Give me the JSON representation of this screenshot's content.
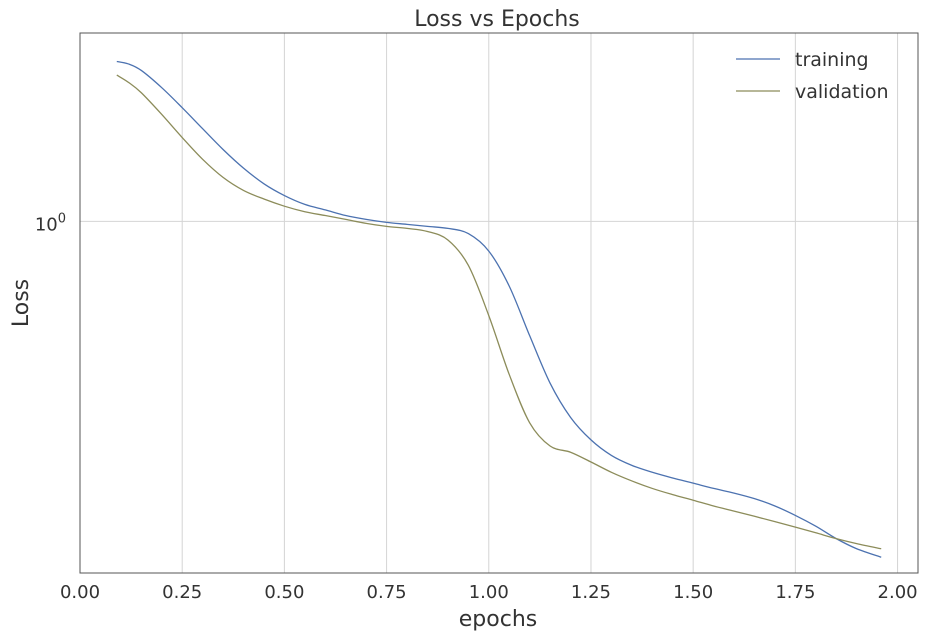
{
  "chart_data": {
    "type": "line",
    "title": "Loss vs Epochs",
    "xlabel": "epochs",
    "ylabel": "Loss",
    "xlim": [
      0.0,
      2.05
    ],
    "yscale": "log",
    "ylim": [
      0.168,
      2.6
    ],
    "grid": true,
    "legend_position": "top-right",
    "x_ticks": [
      0.0,
      0.25,
      0.5,
      0.75,
      1.0,
      1.25,
      1.5,
      1.75,
      2.0
    ],
    "x_tick_labels": [
      "0.00",
      "0.25",
      "0.50",
      "0.75",
      "1.00",
      "1.25",
      "1.50",
      "1.75",
      "2.00"
    ],
    "y_ticks": [
      1.0
    ],
    "y_tick_base": "10",
    "y_tick_exponent": "0",
    "x": [
      0.09,
      0.12,
      0.15,
      0.2,
      0.25,
      0.3,
      0.35,
      0.4,
      0.45,
      0.5,
      0.55,
      0.6,
      0.65,
      0.7,
      0.75,
      0.8,
      0.85,
      0.9,
      0.95,
      1.0,
      1.05,
      1.1,
      1.15,
      1.2,
      1.25,
      1.3,
      1.35,
      1.4,
      1.45,
      1.5,
      1.55,
      1.6,
      1.65,
      1.7,
      1.75,
      1.8,
      1.85,
      1.9,
      1.96
    ],
    "series": [
      {
        "name": "training",
        "color": "#4c72b0",
        "values": [
          2.25,
          2.22,
          2.15,
          1.97,
          1.78,
          1.6,
          1.44,
          1.31,
          1.21,
          1.14,
          1.09,
          1.06,
          1.03,
          1.01,
          0.995,
          0.985,
          0.975,
          0.965,
          0.94,
          0.86,
          0.72,
          0.56,
          0.44,
          0.37,
          0.33,
          0.305,
          0.29,
          0.28,
          0.272,
          0.265,
          0.258,
          0.252,
          0.245,
          0.236,
          0.225,
          0.213,
          0.2,
          0.19,
          0.182
        ]
      },
      {
        "name": "validation",
        "color": "#8c8c5a",
        "values": [
          2.1,
          2.02,
          1.92,
          1.72,
          1.53,
          1.37,
          1.25,
          1.17,
          1.12,
          1.08,
          1.05,
          1.03,
          1.01,
          0.99,
          0.975,
          0.965,
          0.95,
          0.91,
          0.8,
          0.62,
          0.46,
          0.36,
          0.32,
          0.31,
          0.295,
          0.28,
          0.268,
          0.258,
          0.25,
          0.243,
          0.236,
          0.23,
          0.224,
          0.218,
          0.212,
          0.206,
          0.2,
          0.195,
          0.19
        ]
      }
    ]
  }
}
